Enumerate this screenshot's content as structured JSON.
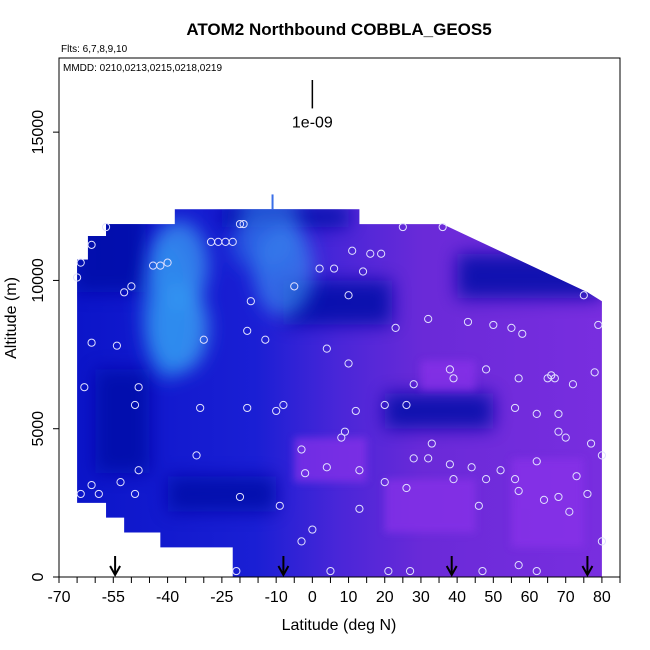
{
  "chart_data": {
    "type": "heatmap",
    "title": "ATOM2 Northbound COBBLA_GEOS5",
    "subtitle_flights": "Flts: 6,7,8,9,10",
    "subtitle_dates": "MMDD: 0210,0213,0215,0218,0219",
    "xlabel": "Latitude (deg N)",
    "ylabel": "Altitude (m)",
    "xlim": [
      -70,
      85
    ],
    "ylim": [
      0,
      17500
    ],
    "x_ticks": [
      {
        "value": -70,
        "label": "-70"
      },
      {
        "value": -55,
        "label": "-55"
      },
      {
        "value": -40,
        "label": "-40"
      },
      {
        "value": -25,
        "label": "-25"
      },
      {
        "value": -10,
        "label": "-10"
      },
      {
        "value": 0,
        "label": "0"
      },
      {
        "value": 10,
        "label": "10"
      },
      {
        "value": 20,
        "label": "20"
      },
      {
        "value": 30,
        "label": "30"
      },
      {
        "value": 40,
        "label": "40"
      },
      {
        "value": 50,
        "label": "50"
      },
      {
        "value": 60,
        "label": "60"
      },
      {
        "value": 70,
        "label": "70"
      },
      {
        "value": 80,
        "label": "80"
      }
    ],
    "x_minor_ticks": [
      -65,
      -60,
      -50,
      -45,
      -35,
      -30,
      -20,
      -15,
      -5,
      5,
      15,
      25,
      35,
      45,
      55,
      65,
      75,
      85
    ],
    "y_ticks": [
      {
        "value": 0,
        "label": "0"
      },
      {
        "value": 5000,
        "label": "5000"
      },
      {
        "value": 10000,
        "label": "10000"
      },
      {
        "value": 15000,
        "label": "15000"
      }
    ],
    "scale_bar": {
      "label": "1e-09",
      "x": 0,
      "y_bottom": 15800,
      "y_top": 17500
    },
    "flight_arrows_lat": [
      -54.5,
      -8,
      38.5,
      76
    ],
    "envelope": [
      [
        -65,
        0,
        2500
      ],
      [
        -65,
        2500,
        10700
      ],
      [
        -62,
        10700,
        11500
      ],
      [
        -57,
        11500,
        11900
      ],
      [
        -38,
        11900,
        12400
      ],
      [
        -33,
        12400,
        12600
      ],
      [
        13,
        12400,
        12600
      ],
      [
        36,
        11900,
        12000
      ],
      [
        76,
        9500,
        9800
      ],
      [
        80,
        4200,
        9600
      ],
      [
        80,
        0,
        4200
      ]
    ],
    "envelope_left_bottom": [
      [
        -65,
        2500
      ],
      [
        -57,
        2500
      ],
      [
        -57,
        2000
      ],
      [
        -52,
        2000
      ],
      [
        -52,
        1500
      ],
      [
        -42,
        1500
      ],
      [
        -42,
        1000
      ],
      [
        -22,
        1000
      ],
      [
        -22,
        0
      ]
    ],
    "field_note": "relative concentration, 0 = dark blue, 0.5 = light blue, 1 = purple",
    "field_highlights": [
      {
        "lat": -37,
        "alt": 8400,
        "intensity": 0.5
      },
      {
        "lat": -37,
        "alt": 10500,
        "intensity": 0.45
      },
      {
        "lat": -8,
        "alt": 10300,
        "intensity": 0.35
      },
      {
        "lat": -12,
        "alt": 12000,
        "intensity": 0.25
      }
    ],
    "observations": [
      [
        -64,
        2800
      ],
      [
        -61,
        3100
      ],
      [
        -59,
        2800
      ],
      [
        -63,
        6400
      ],
      [
        -61,
        7900
      ],
      [
        -65,
        10100
      ],
      [
        -64,
        10600
      ],
      [
        -61,
        11200
      ],
      [
        -57,
        11800
      ],
      [
        -53,
        3200
      ],
      [
        -49,
        2800
      ],
      [
        -48,
        3600
      ],
      [
        -49,
        5800
      ],
      [
        -48,
        6400
      ],
      [
        -54,
        7800
      ],
      [
        -52,
        9600
      ],
      [
        -50,
        9800
      ],
      [
        -44,
        10500
      ],
      [
        -42,
        10500
      ],
      [
        -40,
        10600
      ],
      [
        -32,
        4100
      ],
      [
        -31,
        5700
      ],
      [
        -30,
        8000
      ],
      [
        -28,
        11300
      ],
      [
        -26,
        11300
      ],
      [
        -24,
        11300
      ],
      [
        -22,
        11300
      ],
      [
        -20,
        11900
      ],
      [
        -19,
        11900
      ],
      [
        -21,
        200
      ],
      [
        -20,
        2700
      ],
      [
        -18,
        5700
      ],
      [
        -18,
        8300
      ],
      [
        -17,
        9300
      ],
      [
        -13,
        8000
      ],
      [
        -9,
        2400
      ],
      [
        -10,
        5600
      ],
      [
        -8,
        5800
      ],
      [
        -5,
        9800
      ],
      [
        -3,
        4300
      ],
      [
        -2,
        3500
      ],
      [
        -3,
        1200
      ],
      [
        0,
        1600
      ],
      [
        2,
        10400
      ],
      [
        4,
        3700
      ],
      [
        4,
        7700
      ],
      [
        5,
        200
      ],
      [
        6,
        10400
      ],
      [
        8,
        4700
      ],
      [
        9,
        4900
      ],
      [
        10,
        7200
      ],
      [
        10,
        9500
      ],
      [
        11,
        11000
      ],
      [
        12,
        5600
      ],
      [
        13,
        2300
      ],
      [
        13,
        3600
      ],
      [
        14,
        10300
      ],
      [
        16,
        10900
      ],
      [
        19,
        10900
      ],
      [
        20,
        3200
      ],
      [
        20,
        5800
      ],
      [
        21,
        200
      ],
      [
        23,
        8400
      ],
      [
        25,
        11800
      ],
      [
        26,
        5800
      ],
      [
        26,
        3000
      ],
      [
        27,
        200
      ],
      [
        28,
        4000
      ],
      [
        28,
        6500
      ],
      [
        32,
        4000
      ],
      [
        32,
        8700
      ],
      [
        33,
        4500
      ],
      [
        36,
        11800
      ],
      [
        38,
        7000
      ],
      [
        39,
        6700
      ],
      [
        38,
        3800
      ],
      [
        39,
        3300
      ],
      [
        43,
        8600
      ],
      [
        44,
        3700
      ],
      [
        46,
        2400
      ],
      [
        47,
        200
      ],
      [
        48,
        3300
      ],
      [
        48,
        7000
      ],
      [
        50,
        8500
      ],
      [
        52,
        3600
      ],
      [
        55,
        8400
      ],
      [
        56,
        5700
      ],
      [
        56,
        3300
      ],
      [
        57,
        2900
      ],
      [
        57,
        6700
      ],
      [
        57,
        400
      ],
      [
        58,
        8200
      ],
      [
        62,
        5500
      ],
      [
        62,
        3900
      ],
      [
        62,
        200
      ],
      [
        64,
        2600
      ],
      [
        65,
        6700
      ],
      [
        66,
        6800
      ],
      [
        67,
        6700
      ],
      [
        68,
        4900
      ],
      [
        68,
        5500
      ],
      [
        68,
        2700
      ],
      [
        70,
        4700
      ],
      [
        71,
        2200
      ],
      [
        72,
        6500
      ],
      [
        73,
        3400
      ],
      [
        75,
        9500
      ],
      [
        76,
        2800
      ],
      [
        77,
        4500
      ],
      [
        78,
        6900
      ],
      [
        79,
        8500
      ],
      [
        80,
        4100
      ],
      [
        80,
        1200
      ]
    ]
  }
}
